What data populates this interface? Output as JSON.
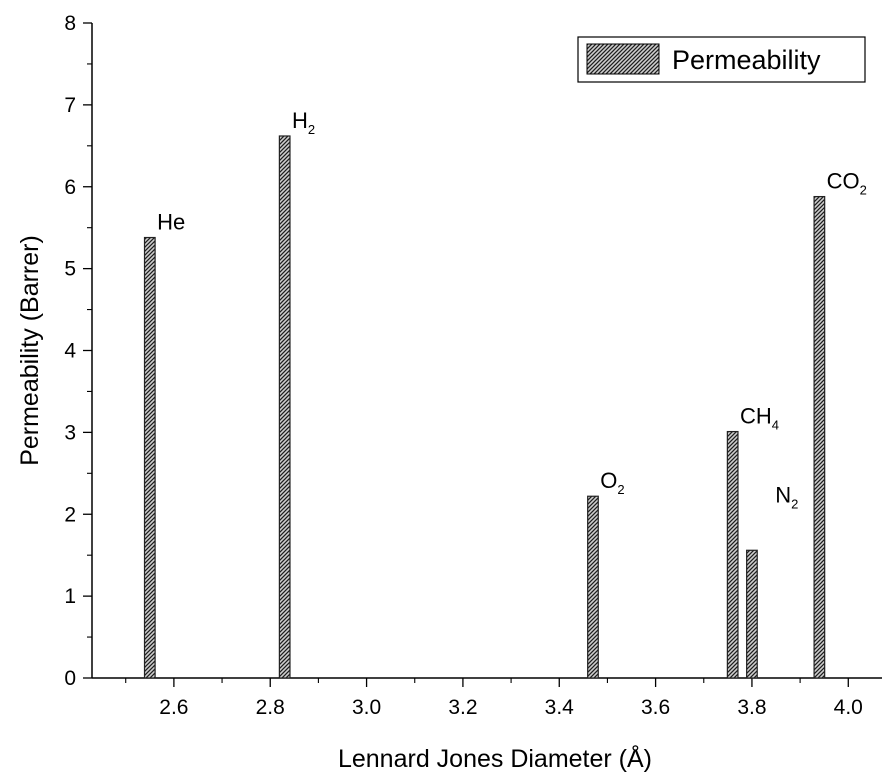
{
  "chart_data": {
    "type": "bar",
    "xlabel": "Lennard Jones Diameter (Å)",
    "ylabel": "Permeability (Barrer)",
    "xlim": [
      2.43,
      4.07
    ],
    "ylim": [
      0,
      8
    ],
    "xticks": [
      "2.6",
      "2.8",
      "3.0",
      "3.2",
      "3.4",
      "3.6",
      "3.8",
      "4.0"
    ],
    "xtick_values": [
      2.6,
      2.8,
      3.0,
      3.2,
      3.4,
      3.6,
      3.8,
      4.0
    ],
    "yticks": [
      "0",
      "1",
      "2",
      "3",
      "4",
      "5",
      "6",
      "7",
      "8"
    ],
    "ytick_values": [
      0,
      1,
      2,
      3,
      4,
      5,
      6,
      7,
      8
    ],
    "grid": false,
    "legend": {
      "position": "top-right",
      "entries": [
        "Permeability"
      ]
    },
    "bar_width": 0.022,
    "bar_color": "#3a3a3a",
    "series": [
      {
        "name": "Permeability",
        "points": [
          {
            "x": 2.55,
            "y": 5.38,
            "label": "He",
            "sub": ""
          },
          {
            "x": 2.83,
            "y": 6.62,
            "label": "H",
            "sub": "2"
          },
          {
            "x": 3.47,
            "y": 2.22,
            "label": "O",
            "sub": "2"
          },
          {
            "x": 3.76,
            "y": 3.01,
            "label": "CH",
            "sub": "4"
          },
          {
            "x": 3.8,
            "y": 1.56,
            "label": "N",
            "sub": "2"
          },
          {
            "x": 3.94,
            "y": 5.88,
            "label": "CO",
            "sub": "2"
          }
        ]
      }
    ]
  }
}
